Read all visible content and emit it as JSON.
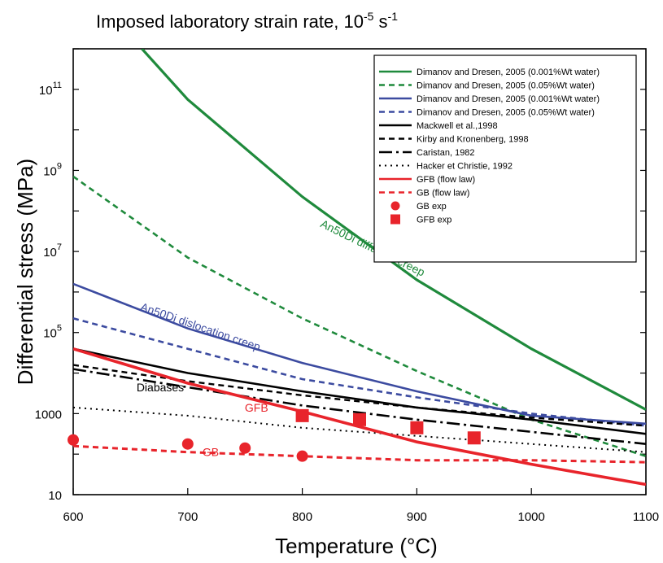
{
  "chart_data": {
    "type": "line",
    "title": "Imposed laboratory strain rate, 10",
    "title_sup": "-5",
    "title_unit": " s",
    "title_unit_sup": "-1",
    "xlabel": "Temperature (°C)",
    "ylabel": "Differential stress (MPa)",
    "xlim": [
      600,
      1100
    ],
    "ylim_log10": [
      1,
      12
    ],
    "y_scale": "log",
    "grid": false,
    "legend_position": "top-right",
    "x_ticks": [
      600,
      700,
      800,
      900,
      1000,
      1100
    ],
    "x_tick_labels": [
      "600",
      "700",
      "800",
      "900",
      "1000",
      "1100"
    ],
    "y_tick_labels": [
      {
        "exp": 1,
        "base": "10",
        "sup": ""
      },
      {
        "exp": 3,
        "base": "1000",
        "sup": ""
      },
      {
        "exp": 5,
        "base": "10",
        "sup": "5"
      },
      {
        "exp": 7,
        "base": "10",
        "sup": "7"
      },
      {
        "exp": 9,
        "base": "10",
        "sup": "9"
      },
      {
        "exp": 11,
        "base": "10",
        "sup": "11"
      }
    ],
    "series": [
      {
        "name": "Dimanov and Dresen, 2005 (0.001%Wt water)",
        "color": "#1f8a3c",
        "style": "solid",
        "width": 3.2,
        "x": [
          660,
          700,
          800,
          900,
          1000,
          1100
        ],
        "y_log10": [
          12.0,
          10.75,
          8.35,
          6.3,
          4.6,
          3.1
        ]
      },
      {
        "name": "Dimanov and Dresen, 2005 (0.05%Wt water)",
        "color": "#1f8a3c",
        "style": "dashed",
        "width": 2.6,
        "x": [
          600,
          700,
          800,
          900,
          1000,
          1100
        ],
        "y_log10": [
          8.85,
          6.85,
          5.35,
          4.05,
          2.85,
          1.95
        ]
      },
      {
        "name": "Dimanov and Dresen, 2005 (0.001%Wt water)",
        "color": "#3c4ba0",
        "style": "solid",
        "width": 2.6,
        "x": [
          600,
          700,
          800,
          900,
          1000,
          1100
        ],
        "y_log10": [
          6.2,
          5.1,
          4.25,
          3.55,
          2.95,
          2.75
        ]
      },
      {
        "name": "Dimanov and Dresen, 2005 (0.05%Wt water)",
        "color": "#3c4ba0",
        "style": "dashed",
        "width": 2.6,
        "x": [
          600,
          700,
          800,
          900,
          1000,
          1100
        ],
        "y_log10": [
          5.35,
          4.6,
          3.85,
          3.4,
          3.0,
          2.7
        ]
      },
      {
        "name": "Mackwell et al.,1998",
        "color": "#000000",
        "style": "solid",
        "width": 2.6,
        "x": [
          600,
          700,
          800,
          900,
          1000,
          1100
        ],
        "y_log10": [
          4.6,
          4.0,
          3.55,
          3.15,
          2.85,
          2.5
        ]
      },
      {
        "name": "Kirby and Kronenberg, 1998",
        "color": "#000000",
        "style": "dashed",
        "width": 2.4,
        "x": [
          600,
          700,
          800,
          900,
          1000,
          1100
        ],
        "y_log10": [
          4.2,
          3.8,
          3.45,
          3.15,
          2.9,
          2.7
        ]
      },
      {
        "name": "Caristan, 1982",
        "color": "#000000",
        "style": "dashdot",
        "width": 2.6,
        "x": [
          600,
          700,
          800,
          900,
          1000,
          1100
        ],
        "y_log10": [
          4.1,
          3.65,
          3.2,
          2.85,
          2.55,
          2.25
        ]
      },
      {
        "name": "Hacker et Christie, 1992",
        "color": "#000000",
        "style": "dotted",
        "width": 2.0,
        "x": [
          600,
          700,
          800,
          900,
          1000,
          1100
        ],
        "y_log10": [
          3.15,
          2.95,
          2.65,
          2.45,
          2.25,
          2.05
        ]
      },
      {
        "name": "GFB (flow law)",
        "color": "#e8242b",
        "style": "solid",
        "width": 3.6,
        "x": [
          600,
          700,
          800,
          900,
          1000,
          1100
        ],
        "y_log10": [
          4.6,
          3.75,
          3.05,
          2.3,
          1.75,
          1.25
        ]
      },
      {
        "name": "GB (flow law)",
        "color": "#e8242b",
        "style": "dashed",
        "width": 3.0,
        "x": [
          600,
          700,
          800,
          900,
          1000,
          1100
        ],
        "y_log10": [
          2.2,
          2.05,
          1.95,
          1.85,
          1.85,
          1.8
        ]
      }
    ],
    "scatter": [
      {
        "name": "GB exp",
        "color": "#e8242b",
        "marker": "circle",
        "x": [
          600,
          700,
          750,
          800
        ],
        "y_log10": [
          2.35,
          2.25,
          2.15,
          1.95
        ]
      },
      {
        "name": "GFB exp",
        "color": "#e8242b",
        "marker": "square",
        "x": [
          800,
          850,
          900,
          950
        ],
        "y_log10": [
          2.95,
          2.85,
          2.65,
          2.4
        ]
      }
    ],
    "annotations": [
      {
        "text": "An50Di diffusion creep",
        "color": "#1f8a3c",
        "x": 860,
        "y_log10": 7.0,
        "angle": 26
      },
      {
        "text": "An50Di dislocation creep",
        "color": "#3c4ba0",
        "x": 710,
        "y_log10": 5.05,
        "angle": 19
      },
      {
        "text": "Diabases",
        "color": "#000000",
        "x": 676,
        "y_log10": 3.55,
        "angle": 0
      },
      {
        "text": "GFB",
        "color": "#e8242b",
        "x": 760,
        "y_log10": 3.05,
        "angle": 0
      },
      {
        "text": "GB",
        "color": "#e8242b",
        "x": 720,
        "y_log10": 1.95,
        "angle": 0
      }
    ]
  }
}
